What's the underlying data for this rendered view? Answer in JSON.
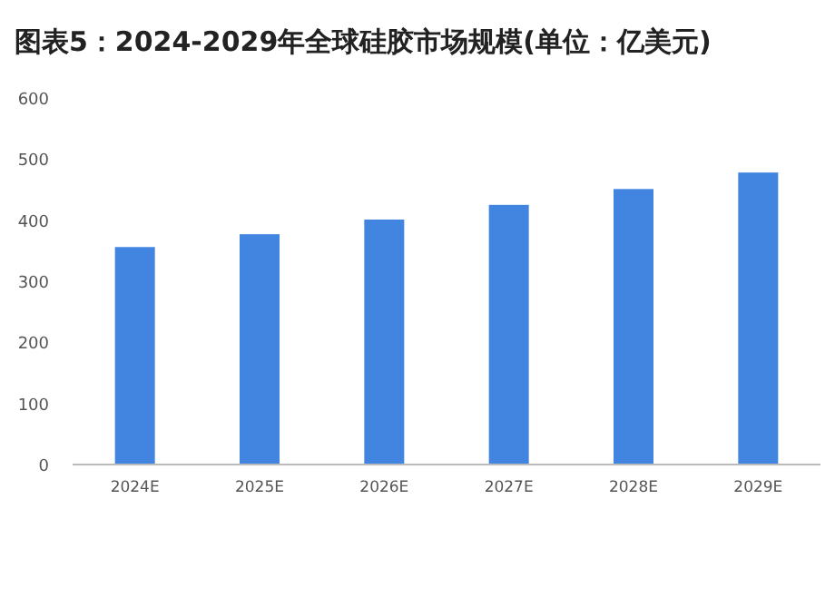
{
  "chart_data": {
    "type": "bar",
    "title": "图表5：2024-2029年全球硅胶市场规模(单位：亿美元)",
    "categories": [
      "2024E",
      "2025E",
      "2026E",
      "2027E",
      "2028E",
      "2029E"
    ],
    "values": [
      356,
      377,
      401,
      425,
      451,
      478
    ],
    "color": "#4285e0",
    "ylim": [
      0,
      600
    ],
    "yticks": [
      0,
      100,
      200,
      300,
      400,
      500,
      600
    ],
    "grid": false
  }
}
